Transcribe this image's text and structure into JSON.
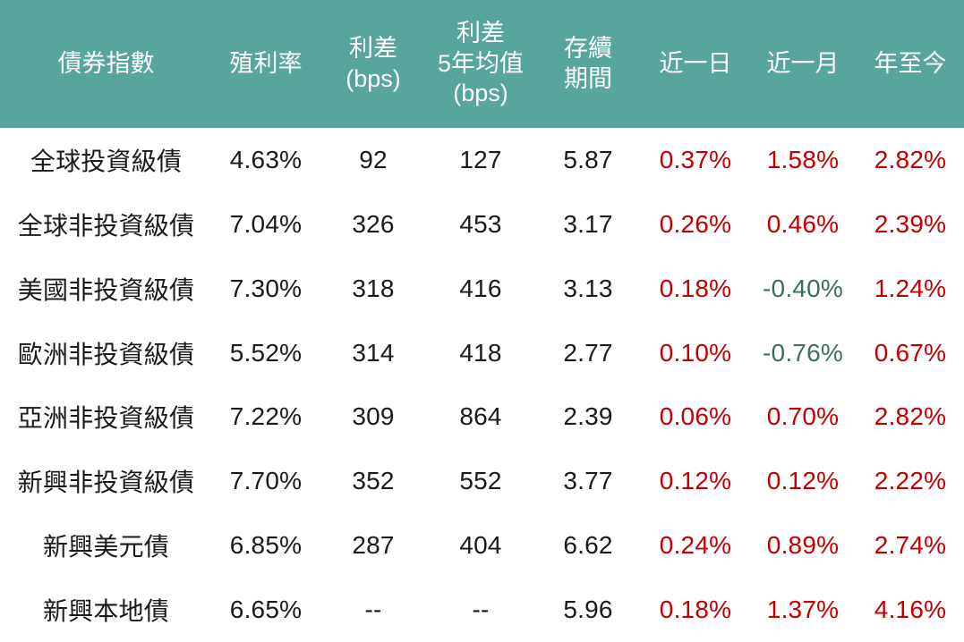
{
  "colors": {
    "header_bg": "#56A69B",
    "header_text": "#FFFFFF",
    "body_text": "#1A1A1A",
    "positive": "#C00000",
    "negative": "#3D6C62",
    "body_bg": "#FFFFFF"
  },
  "chart_data": {
    "type": "table",
    "title": "",
    "columns": [
      {
        "key": "name",
        "label": "債券指數"
      },
      {
        "key": "yield",
        "label": "殖利率"
      },
      {
        "key": "spread",
        "label": "利差\n(bps)"
      },
      {
        "key": "spread_5y_avg",
        "label": "利差\n5年均值\n(bps)"
      },
      {
        "key": "duration",
        "label": "存續\n期間"
      },
      {
        "key": "d1",
        "label": "近一日"
      },
      {
        "key": "m1",
        "label": "近一月"
      },
      {
        "key": "ytd",
        "label": "年至今"
      }
    ],
    "change_columns": [
      "d1",
      "m1",
      "ytd"
    ],
    "rows": [
      {
        "name": "全球投資級債",
        "yield": "4.63%",
        "spread": "92",
        "spread_5y_avg": "127",
        "duration": "5.87",
        "d1": "0.37%",
        "m1": "1.58%",
        "ytd": "2.82%"
      },
      {
        "name": "全球非投資級債",
        "yield": "7.04%",
        "spread": "326",
        "spread_5y_avg": "453",
        "duration": "3.17",
        "d1": "0.26%",
        "m1": "0.46%",
        "ytd": "2.39%"
      },
      {
        "name": "美國非投資級債",
        "yield": "7.30%",
        "spread": "318",
        "spread_5y_avg": "416",
        "duration": "3.13",
        "d1": "0.18%",
        "m1": "-0.40%",
        "ytd": "1.24%"
      },
      {
        "name": "歐洲非投資級債",
        "yield": "5.52%",
        "spread": "314",
        "spread_5y_avg": "418",
        "duration": "2.77",
        "d1": "0.10%",
        "m1": "-0.76%",
        "ytd": "0.67%"
      },
      {
        "name": "亞洲非投資級債",
        "yield": "7.22%",
        "spread": "309",
        "spread_5y_avg": "864",
        "duration": "2.39",
        "d1": "0.06%",
        "m1": "0.70%",
        "ytd": "2.82%"
      },
      {
        "name": "新興非投資級債",
        "yield": "7.70%",
        "spread": "352",
        "spread_5y_avg": "552",
        "duration": "3.77",
        "d1": "0.12%",
        "m1": "0.12%",
        "ytd": "2.22%"
      },
      {
        "name": "新興美元債",
        "yield": "6.85%",
        "spread": "287",
        "spread_5y_avg": "404",
        "duration": "6.62",
        "d1": "0.24%",
        "m1": "0.89%",
        "ytd": "2.74%"
      },
      {
        "name": "新興本地債",
        "yield": "6.65%",
        "spread": "--",
        "spread_5y_avg": "--",
        "duration": "5.96",
        "d1": "0.18%",
        "m1": "1.37%",
        "ytd": "4.16%"
      }
    ]
  }
}
